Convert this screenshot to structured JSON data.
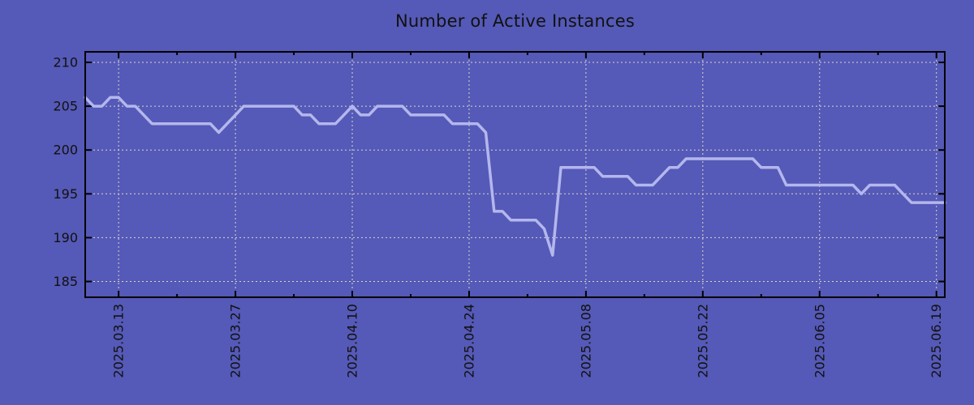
{
  "chart_data": {
    "type": "line",
    "title": "Number of Active Instances",
    "x_start_date": "2025.03.09",
    "x_end_date": "2025.06.20",
    "x_interval": "daily",
    "values": [
      206,
      205,
      205,
      206,
      206,
      205,
      205,
      204,
      203,
      203,
      203,
      203,
      203,
      203,
      203,
      203,
      202,
      203,
      204,
      205,
      205,
      205,
      205,
      205,
      205,
      205,
      204,
      204,
      203,
      203,
      203,
      204,
      205,
      204,
      204,
      205,
      205,
      205,
      205,
      204,
      204,
      204,
      204,
      204,
      203,
      203,
      203,
      203,
      202,
      193,
      193,
      192,
      192,
      192,
      192,
      191,
      188,
      198,
      198,
      198,
      198,
      198,
      197,
      197,
      197,
      197,
      196,
      196,
      196,
      197,
      198,
      198,
      199,
      199,
      199,
      199,
      199,
      199,
      199,
      199,
      199,
      198,
      198,
      198,
      196,
      196,
      196,
      196,
      196,
      196,
      196,
      196,
      196,
      195,
      196,
      196,
      196,
      196,
      195,
      194,
      194,
      194,
      194,
      194
    ],
    "x_ticks": [
      {
        "label": "2025.03.13",
        "index": 4
      },
      {
        "label": "2025.03.27",
        "index": 18
      },
      {
        "label": "2025.04.10",
        "index": 32
      },
      {
        "label": "2025.04.24",
        "index": 46
      },
      {
        "label": "2025.05.08",
        "index": 60
      },
      {
        "label": "2025.05.22",
        "index": 74
      },
      {
        "label": "2025.06.05",
        "index": 88
      },
      {
        "label": "2025.06.19",
        "index": 102
      }
    ],
    "x_minor_tick_indices": [
      11,
      25,
      39,
      53,
      67,
      81,
      95
    ],
    "y_ticks": [
      {
        "label": "185",
        "value": 185
      },
      {
        "label": "190",
        "value": 190
      },
      {
        "label": "195",
        "value": 195
      },
      {
        "label": "200",
        "value": 200
      },
      {
        "label": "205",
        "value": 205
      },
      {
        "label": "210",
        "value": 210
      }
    ],
    "ylim": [
      183.2,
      211.2
    ],
    "grid": true,
    "legend": false,
    "colors": {
      "background": "#5559b7",
      "line": "#b4b7ed",
      "grid": "#d8d8c8",
      "axis": "#000000",
      "text": "#111111"
    }
  }
}
